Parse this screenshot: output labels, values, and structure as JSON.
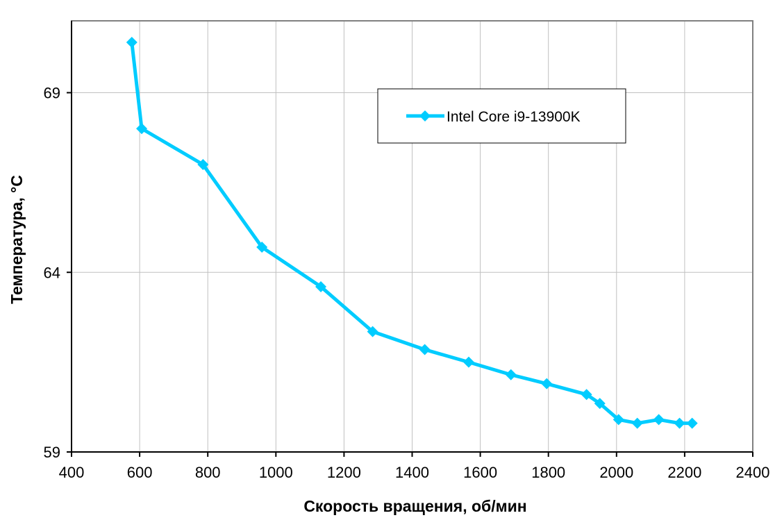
{
  "chart_data": {
    "type": "line",
    "xlabel": "Скорость вращения, об/мин",
    "ylabel": "Температура, °С",
    "xlim": [
      400,
      2400
    ],
    "ylim": [
      59,
      71
    ],
    "x_ticks": [
      "400",
      "600",
      "800",
      "1000",
      "1200",
      "1400",
      "1600",
      "1800",
      "2000",
      "2200",
      "2400"
    ],
    "y_ticks": [
      "59",
      "64",
      "69"
    ],
    "grid": true,
    "legend_position": "top-right",
    "series": [
      {
        "name": "Intel Core i9-13900K",
        "color": "#00ccff",
        "marker": "diamond",
        "x": [
          577,
          606,
          786,
          959,
          1132,
          1284,
          1437,
          1566,
          1690,
          1795,
          1912,
          1951,
          2006,
          2061,
          2124,
          2185,
          2222
        ],
        "y": [
          70.4,
          68.0,
          67.0,
          64.7,
          63.6,
          62.35,
          61.85,
          61.5,
          61.15,
          60.9,
          60.6,
          60.35,
          59.9,
          59.8,
          59.9,
          59.8,
          59.8
        ]
      }
    ]
  }
}
